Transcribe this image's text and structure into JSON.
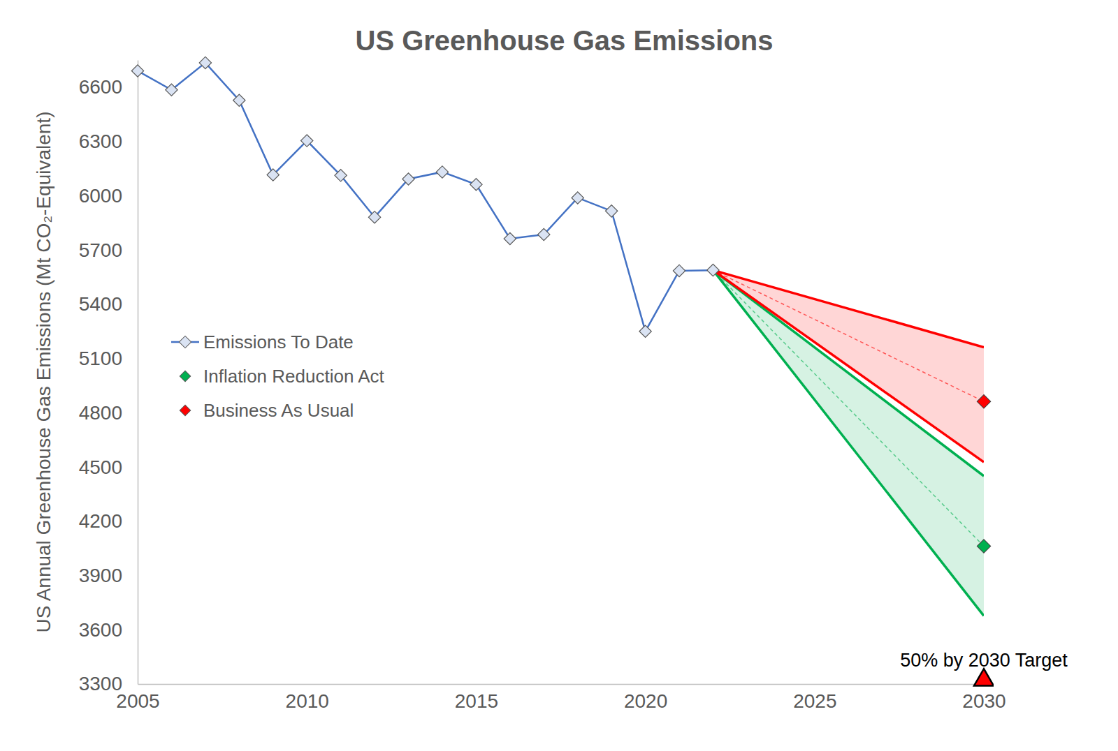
{
  "chart_data": {
    "type": "line",
    "title": "US Greenhouse Gas Emissions",
    "y_label": "US Annual Greenhouse Gas Emissions (Mt CO₂-Equivalent)",
    "xlim": [
      2005,
      2030
    ],
    "xticks": [
      2005,
      2010,
      2015,
      2020,
      2025,
      2030
    ],
    "ylim": [
      3300,
      6750
    ],
    "yticks": [
      3300,
      3600,
      3900,
      4200,
      4500,
      4800,
      5100,
      5400,
      5700,
      6000,
      6300,
      6600
    ],
    "grid": false,
    "legend": "left",
    "series": [
      {
        "name": "Emissions To Date",
        "type": "line",
        "color": "#4472c4",
        "marker": "diamond",
        "x": [
          2005,
          2006,
          2007,
          2008,
          2009,
          2010,
          2011,
          2012,
          2013,
          2014,
          2015,
          2016,
          2017,
          2018,
          2019,
          2020,
          2021,
          2022
        ],
        "values": [
          6690,
          6585,
          6735,
          6527,
          6115,
          6304,
          6112,
          5881,
          6092,
          6131,
          6062,
          5762,
          5785,
          5988,
          5915,
          5250,
          5585,
          5588
        ]
      },
      {
        "name": "Inflation Reduction Act",
        "type": "range",
        "color": "#00b050",
        "marker": "diamond",
        "line_style": "dashed",
        "x": [
          2022,
          2030
        ],
        "values": [
          5588,
          4062
        ],
        "lower": [
          5588,
          3677
        ],
        "upper": [
          5588,
          4450
        ]
      },
      {
        "name": "Business As Usual",
        "type": "range",
        "color": "#ff0000",
        "marker": "diamond",
        "line_style": "dashed",
        "x": [
          2022,
          2030
        ],
        "values": [
          5588,
          4862
        ],
        "lower": [
          5588,
          4527
        ],
        "upper": [
          5588,
          5162
        ]
      }
    ],
    "annotations": [
      {
        "text": "50% by 2030 Target",
        "x": 2030,
        "y": 3310,
        "marker": "triangle",
        "color": "#ff0000"
      }
    ]
  }
}
